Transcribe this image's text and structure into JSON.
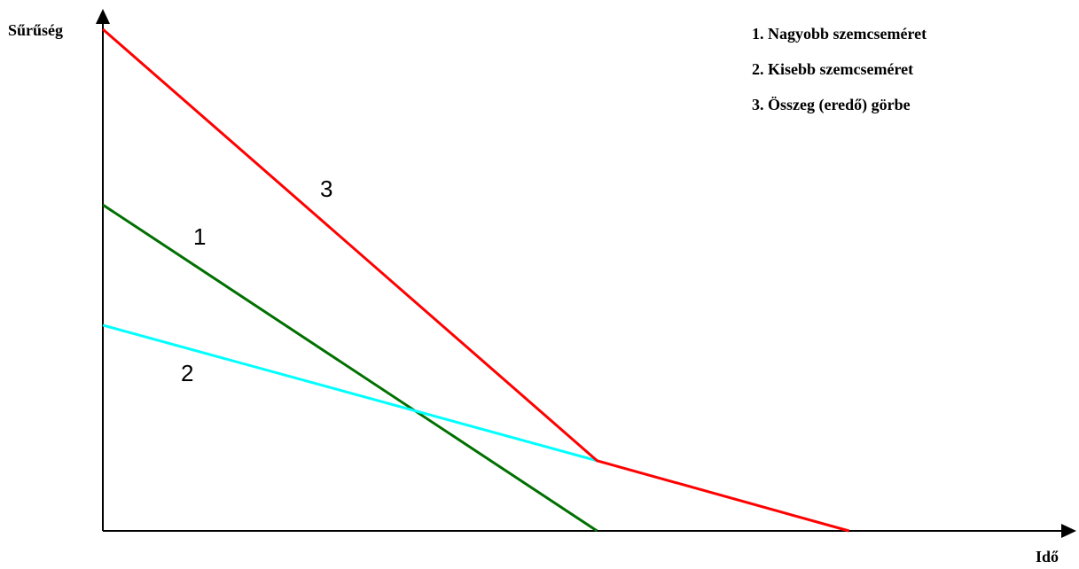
{
  "chart_data": {
    "type": "line",
    "ylabel": "Sűrűség",
    "xlabel": "Idő",
    "grid": false,
    "legend_position": "top-right",
    "legend": [
      "1. Nagyobb szemcseméret",
      "2. Kisebb szemcseméret",
      "3. Összeg (eredő) görbe"
    ],
    "xlim": [
      0,
      1.0
    ],
    "ylim": [
      0,
      1.0
    ],
    "series": [
      {
        "label": "1",
        "color": "#007000",
        "x": [
          0,
          0.51
        ],
        "y": [
          0.65,
          0
        ]
      },
      {
        "label": "2",
        "color": "#00ffff",
        "x": [
          0,
          0.51
        ],
        "y": [
          0.41,
          0.14
        ]
      },
      {
        "label": "3",
        "color": "#ff0000",
        "x": [
          0,
          0.51,
          0.77
        ],
        "y": [
          1.0,
          0.14,
          0
        ]
      }
    ]
  }
}
